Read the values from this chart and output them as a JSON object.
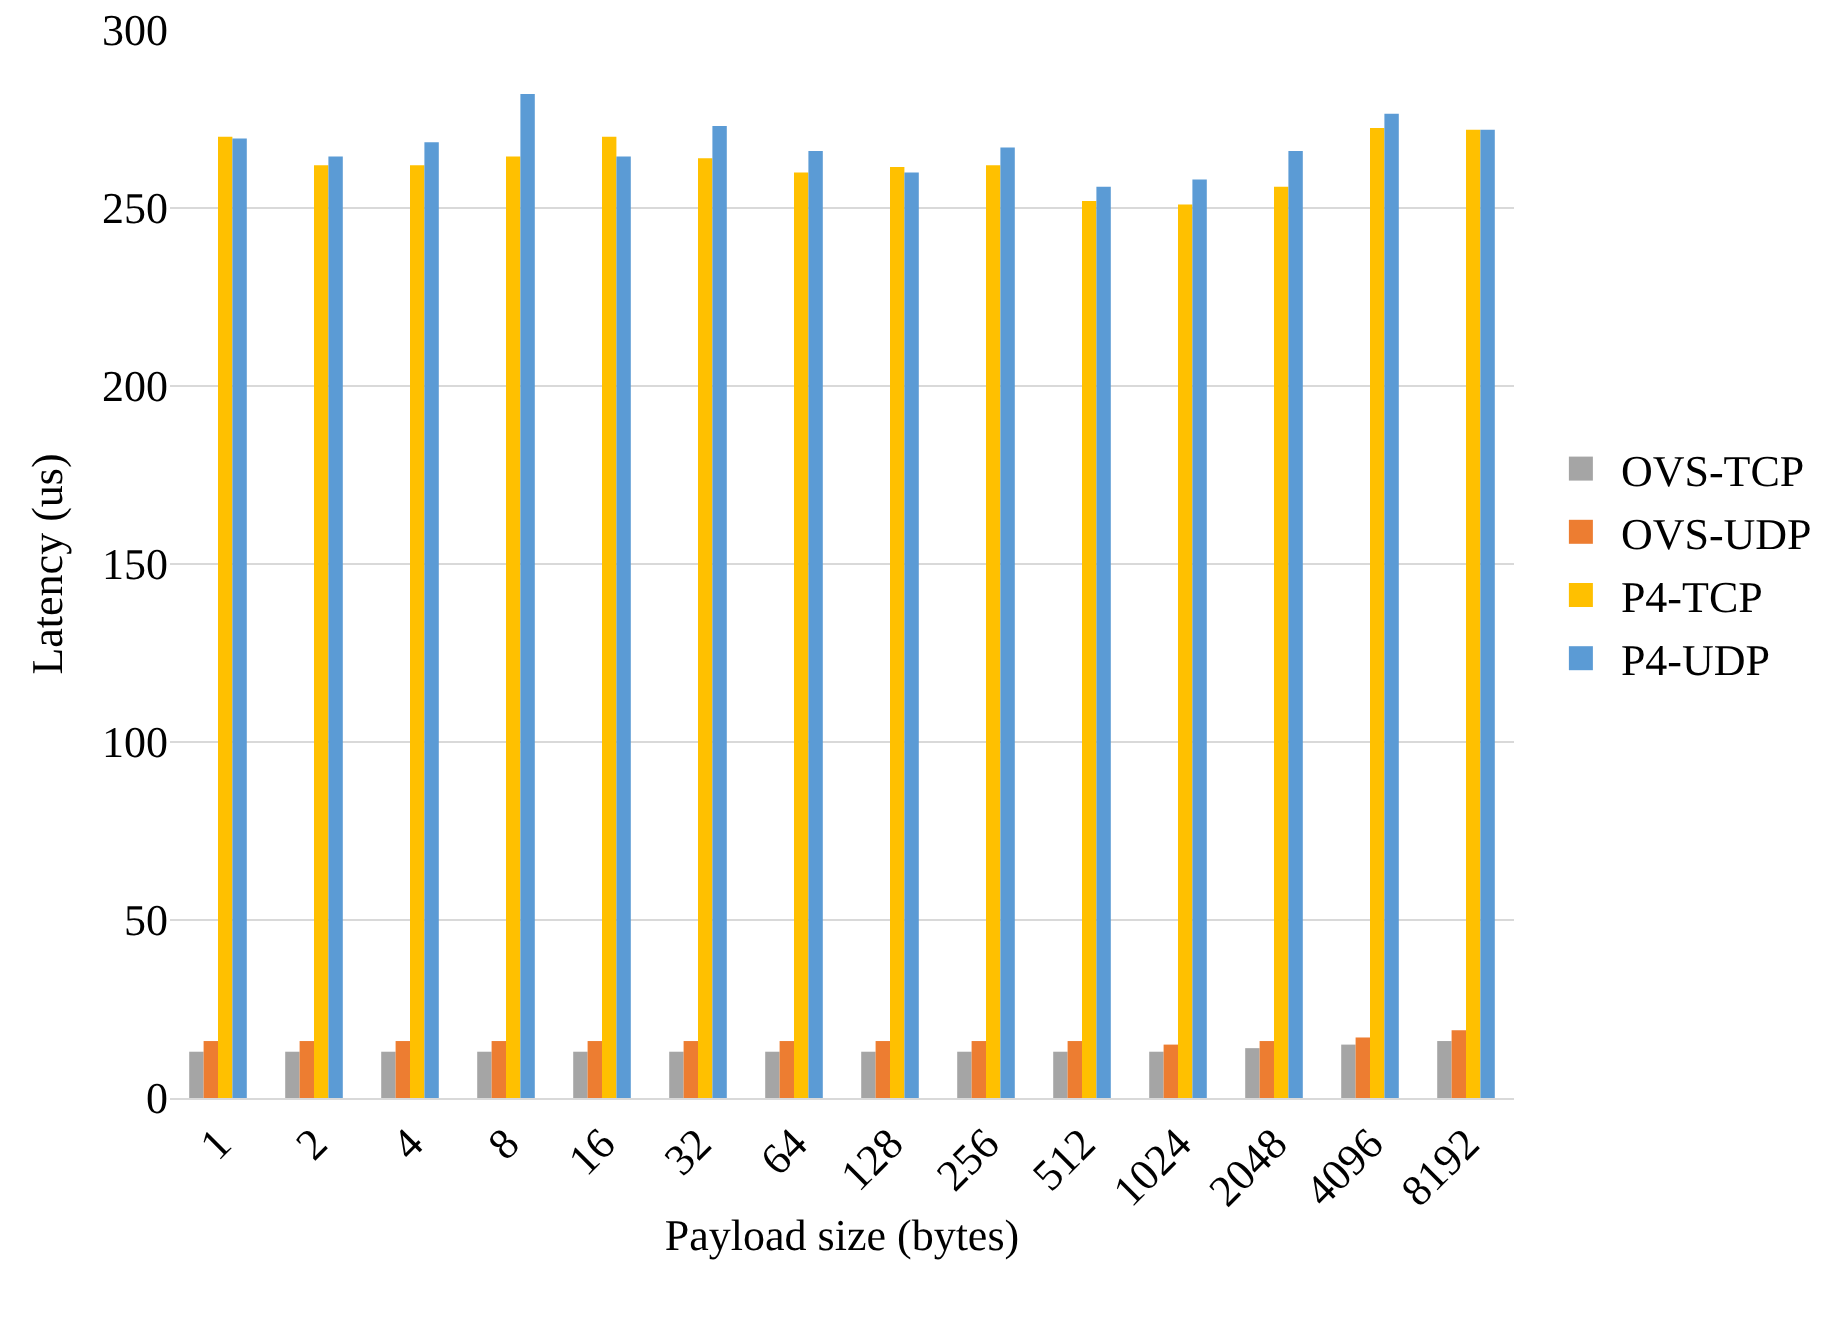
{
  "chart_data": {
    "type": "bar",
    "xlabel": "Payload size (bytes)",
    "ylabel": "Latency (us)",
    "categories": [
      "1",
      "2",
      "4",
      "8",
      "16",
      "32",
      "64",
      "128",
      "256",
      "512",
      "1024",
      "2048",
      "4096",
      "8192"
    ],
    "series": [
      {
        "name": "OVS-TCP",
        "color": "#a5a5a5",
        "values": [
          13,
          13,
          13,
          13,
          13,
          13,
          13,
          13,
          13,
          13,
          13,
          14,
          15,
          16
        ]
      },
      {
        "name": "OVS-UDP",
        "color": "#ed7d31",
        "values": [
          16,
          16,
          16,
          16,
          16,
          16,
          16,
          16,
          16,
          16,
          15,
          16,
          17,
          19
        ]
      },
      {
        "name": "P4-TCP",
        "color": "#ffc000",
        "values": [
          270,
          262,
          262,
          264.5,
          270,
          264,
          260,
          261.5,
          262,
          252,
          251,
          256,
          272.5,
          272
        ]
      },
      {
        "name": "P4-UDP",
        "color": "#5b9bd5",
        "values": [
          269.5,
          264.5,
          268.5,
          282,
          264.5,
          273,
          266,
          260,
          267,
          256,
          258,
          266,
          276.5,
          272
        ]
      }
    ],
    "ylim": [
      0,
      300
    ],
    "yticks": [
      0,
      50,
      100,
      150,
      200,
      250,
      300
    ],
    "grid": "y",
    "legend": "right"
  }
}
